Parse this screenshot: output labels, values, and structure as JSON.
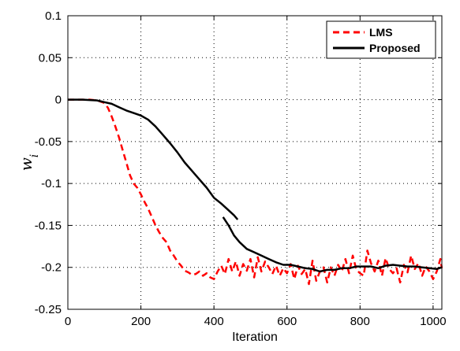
{
  "chart_data": {
    "type": "line",
    "title": "",
    "xlabel": "Iteration",
    "ylabel": "w",
    "ylabel_subscript": "i",
    "xlim": [
      0,
      1024
    ],
    "ylim": [
      -0.25,
      0.1
    ],
    "x_ticks": [
      0,
      200,
      400,
      600,
      800,
      1000
    ],
    "x_tick_labels": [
      "0",
      "200",
      "400",
      "600",
      "800",
      "1000"
    ],
    "y_ticks": [
      0.1,
      0.05,
      0,
      -0.05,
      -0.1,
      -0.15,
      -0.2,
      -0.25
    ],
    "y_tick_labels": [
      "0.1",
      "0.05",
      "0",
      "-0.05",
      "-0.1",
      "-0.15",
      "-0.2",
      "-0.25"
    ],
    "grid": true,
    "legend_position": "top-right",
    "series": [
      {
        "name": "LMS",
        "color": "#ff0000",
        "style": "dashed",
        "x": [
          0,
          20,
          40,
          60,
          80,
          100,
          110,
          120,
          130,
          140,
          150,
          160,
          170,
          180,
          190,
          200,
          210,
          220,
          230,
          240,
          250,
          260,
          270,
          280,
          290,
          300,
          310,
          320,
          330,
          340,
          350,
          360,
          370,
          380,
          390,
          400,
          410,
          420,
          430,
          440,
          450,
          460,
          470,
          480,
          490,
          500,
          510,
          520,
          530,
          540,
          550,
          560,
          570,
          580,
          590,
          600,
          610,
          620,
          630,
          640,
          650,
          660,
          670,
          680,
          690,
          700,
          710,
          720,
          730,
          740,
          750,
          760,
          770,
          780,
          790,
          800,
          810,
          820,
          830,
          840,
          850,
          860,
          870,
          880,
          890,
          900,
          910,
          920,
          930,
          940,
          950,
          960,
          970,
          980,
          990,
          1000,
          1010,
          1020,
          1024
        ],
        "y": [
          0,
          0,
          0,
          0,
          -0.001,
          -0.004,
          -0.01,
          -0.02,
          -0.032,
          -0.045,
          -0.06,
          -0.075,
          -0.09,
          -0.1,
          -0.105,
          -0.113,
          -0.122,
          -0.13,
          -0.14,
          -0.15,
          -0.158,
          -0.165,
          -0.17,
          -0.18,
          -0.186,
          -0.193,
          -0.198,
          -0.204,
          -0.206,
          -0.209,
          -0.208,
          -0.205,
          -0.21,
          -0.207,
          -0.212,
          -0.214,
          -0.205,
          -0.198,
          -0.208,
          -0.19,
          -0.205,
          -0.193,
          -0.21,
          -0.196,
          -0.204,
          -0.19,
          -0.212,
          -0.188,
          -0.205,
          -0.193,
          -0.2,
          -0.208,
          -0.198,
          -0.21,
          -0.201,
          -0.207,
          -0.196,
          -0.214,
          -0.198,
          -0.208,
          -0.202,
          -0.22,
          -0.192,
          -0.216,
          -0.205,
          -0.2,
          -0.218,
          -0.2,
          -0.21,
          -0.197,
          -0.205,
          -0.19,
          -0.207,
          -0.186,
          -0.203,
          -0.207,
          -0.21,
          -0.18,
          -0.195,
          -0.205,
          -0.192,
          -0.21,
          -0.189,
          -0.202,
          -0.207,
          -0.201,
          -0.218,
          -0.197,
          -0.206,
          -0.186,
          -0.202,
          -0.195,
          -0.21,
          -0.199,
          -0.205,
          -0.214,
          -0.205,
          -0.19,
          -0.201
        ]
      },
      {
        "name": "Proposed",
        "color": "#000000",
        "style": "solid",
        "segments": [
          {
            "x": [
              0,
              40,
              80,
              100,
              120,
              140,
              160,
              180,
              200,
              220,
              240,
              260,
              280,
              300,
              320,
              340,
              360,
              380,
              400,
              420,
              440,
              455,
              465
            ],
            "y": [
              0,
              0,
              -0.001,
              -0.003,
              -0.005,
              -0.009,
              -0.013,
              -0.016,
              -0.019,
              -0.024,
              -0.032,
              -0.042,
              -0.052,
              -0.063,
              -0.075,
              -0.085,
              -0.095,
              -0.105,
              -0.117,
              -0.124,
              -0.132,
              -0.138,
              -0.143
            ]
          },
          {
            "x": [
              425,
              440,
              455,
              470,
              490,
              510,
              530,
              550,
              570,
              590,
              610,
              630,
              650,
              670,
              690,
              710,
              730,
              750,
              770,
              790,
              810,
              830,
              850,
              870,
              890,
              910,
              930,
              950,
              970,
              990,
              1010,
              1024
            ],
            "y": [
              -0.14,
              -0.15,
              -0.162,
              -0.17,
              -0.178,
              -0.182,
              -0.186,
              -0.19,
              -0.194,
              -0.197,
              -0.197,
              -0.199,
              -0.201,
              -0.202,
              -0.205,
              -0.203,
              -0.203,
              -0.201,
              -0.201,
              -0.199,
              -0.199,
              -0.199,
              -0.201,
              -0.198,
              -0.197,
              -0.198,
              -0.199,
              -0.199,
              -0.2,
              -0.201,
              -0.202,
              -0.2
            ]
          }
        ]
      }
    ]
  }
}
